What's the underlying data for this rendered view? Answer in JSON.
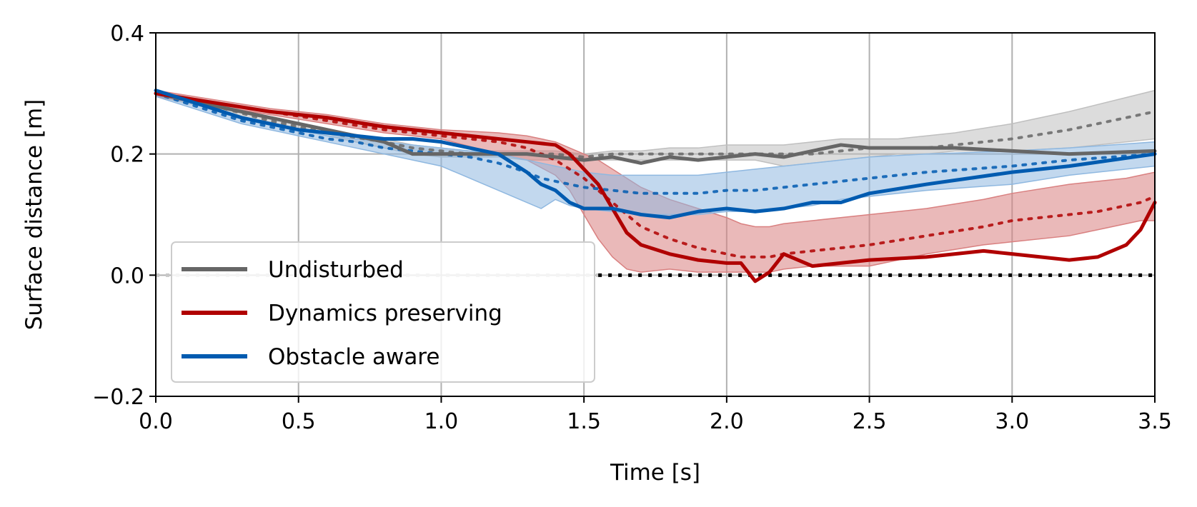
{
  "chart_data": {
    "type": "line",
    "title": "",
    "xlabel": "Time [s]",
    "ylabel": "Surface distance [m]",
    "xlim": [
      0.0,
      3.5
    ],
    "ylim": [
      -0.2,
      0.4
    ],
    "xticks": [
      0.0,
      0.5,
      1.0,
      1.5,
      2.0,
      2.5,
      3.0,
      3.5
    ],
    "xtick_labels": [
      "0.0",
      "0.5",
      "1.0",
      "1.5",
      "2.0",
      "2.5",
      "3.0",
      "3.5"
    ],
    "yticks": [
      -0.2,
      0.0,
      0.2,
      0.4
    ],
    "ytick_labels": [
      "−0.2",
      "0.0",
      "0.2",
      "0.4"
    ],
    "grid": true,
    "legend_position": "lower-left",
    "reference_line": {
      "y": 0.0,
      "style": "dotted",
      "color": "#000000",
      "from_x": 1.55
    },
    "series": [
      {
        "name": "Undisturbed",
        "color": "#666666",
        "band_color": "#bfbfbf",
        "x": [
          0.0,
          0.2,
          0.4,
          0.6,
          0.8,
          0.9,
          1.0,
          1.1,
          1.2,
          1.3,
          1.4,
          1.5,
          1.6,
          1.7,
          1.8,
          1.9,
          2.0,
          2.1,
          2.2,
          2.3,
          2.4,
          2.5,
          2.6,
          2.7,
          2.8,
          3.0,
          3.2,
          3.5
        ],
        "values": [
          0.3,
          0.28,
          0.26,
          0.24,
          0.22,
          0.2,
          0.2,
          0.2,
          0.2,
          0.2,
          0.195,
          0.19,
          0.195,
          0.185,
          0.195,
          0.19,
          0.195,
          0.2,
          0.195,
          0.205,
          0.215,
          0.21,
          0.21,
          0.21,
          0.21,
          0.205,
          0.2,
          0.205
        ],
        "mean": [
          0.3,
          0.28,
          0.255,
          0.235,
          0.22,
          0.21,
          0.205,
          0.2,
          0.2,
          0.2,
          0.2,
          0.195,
          0.2,
          0.2,
          0.2,
          0.2,
          0.2,
          0.2,
          0.2,
          0.2,
          0.205,
          0.21,
          0.21,
          0.21,
          0.215,
          0.225,
          0.24,
          0.27
        ],
        "lower": [
          0.295,
          0.275,
          0.25,
          0.23,
          0.21,
          0.2,
          0.195,
          0.195,
          0.195,
          0.19,
          0.19,
          0.19,
          0.19,
          0.19,
          0.19,
          0.19,
          0.19,
          0.19,
          0.18,
          0.185,
          0.19,
          0.195,
          0.2,
          0.2,
          0.205,
          0.205,
          0.21,
          0.225
        ],
        "upper": [
          0.305,
          0.285,
          0.26,
          0.24,
          0.225,
          0.215,
          0.21,
          0.205,
          0.205,
          0.205,
          0.205,
          0.2,
          0.205,
          0.205,
          0.21,
          0.21,
          0.215,
          0.215,
          0.215,
          0.22,
          0.225,
          0.225,
          0.225,
          0.23,
          0.235,
          0.25,
          0.27,
          0.305
        ]
      },
      {
        "name": "Dynamics preserving",
        "color": "#b00000",
        "band_color": "#d98080",
        "x": [
          0.0,
          0.2,
          0.4,
          0.6,
          0.8,
          1.0,
          1.2,
          1.3,
          1.4,
          1.45,
          1.5,
          1.55,
          1.6,
          1.65,
          1.7,
          1.8,
          1.9,
          2.0,
          2.05,
          2.1,
          2.15,
          2.2,
          2.3,
          2.5,
          2.7,
          2.9,
          3.0,
          3.2,
          3.3,
          3.4,
          3.45,
          3.5
        ],
        "values": [
          0.3,
          0.285,
          0.27,
          0.26,
          0.245,
          0.235,
          0.225,
          0.22,
          0.215,
          0.2,
          0.175,
          0.15,
          0.11,
          0.07,
          0.05,
          0.035,
          0.025,
          0.02,
          0.02,
          -0.01,
          0.005,
          0.035,
          0.015,
          0.025,
          0.03,
          0.04,
          0.035,
          0.025,
          0.03,
          0.05,
          0.075,
          0.12
        ],
        "mean": [
          0.3,
          0.285,
          0.27,
          0.255,
          0.24,
          0.23,
          0.22,
          0.21,
          0.19,
          0.175,
          0.16,
          0.14,
          0.12,
          0.1,
          0.08,
          0.06,
          0.045,
          0.035,
          0.03,
          0.03,
          0.03,
          0.035,
          0.04,
          0.05,
          0.065,
          0.08,
          0.09,
          0.1,
          0.105,
          0.115,
          0.12,
          0.13
        ],
        "lower": [
          0.295,
          0.28,
          0.265,
          0.25,
          0.235,
          0.225,
          0.2,
          0.19,
          0.165,
          0.14,
          0.1,
          0.06,
          0.03,
          0.01,
          0.005,
          0.01,
          0.005,
          0.005,
          0.005,
          0.005,
          0.005,
          0.01,
          0.015,
          0.015,
          0.035,
          0.05,
          0.055,
          0.065,
          0.075,
          0.085,
          0.09,
          0.09
        ],
        "upper": [
          0.305,
          0.29,
          0.275,
          0.265,
          0.25,
          0.24,
          0.235,
          0.23,
          0.22,
          0.21,
          0.2,
          0.19,
          0.175,
          0.16,
          0.145,
          0.125,
          0.11,
          0.095,
          0.085,
          0.08,
          0.08,
          0.085,
          0.09,
          0.1,
          0.11,
          0.125,
          0.135,
          0.15,
          0.155,
          0.16,
          0.165,
          0.17
        ]
      },
      {
        "name": "Obstacle aware",
        "color": "#005bb0",
        "band_color": "#8fb8e0",
        "x": [
          0.0,
          0.1,
          0.2,
          0.3,
          0.4,
          0.5,
          0.6,
          0.7,
          0.8,
          0.9,
          1.0,
          1.1,
          1.2,
          1.3,
          1.35,
          1.4,
          1.45,
          1.5,
          1.6,
          1.7,
          1.8,
          1.9,
          2.0,
          2.1,
          2.2,
          2.3,
          2.4,
          2.5,
          2.7,
          3.0,
          3.2,
          3.5
        ],
        "values": [
          0.305,
          0.29,
          0.275,
          0.26,
          0.25,
          0.24,
          0.235,
          0.23,
          0.225,
          0.225,
          0.22,
          0.21,
          0.2,
          0.17,
          0.15,
          0.14,
          0.12,
          0.11,
          0.11,
          0.1,
          0.095,
          0.105,
          0.11,
          0.105,
          0.11,
          0.12,
          0.12,
          0.135,
          0.15,
          0.17,
          0.18,
          0.2
        ],
        "mean": [
          0.3,
          0.285,
          0.27,
          0.255,
          0.245,
          0.235,
          0.225,
          0.22,
          0.21,
          0.205,
          0.2,
          0.195,
          0.185,
          0.17,
          0.16,
          0.155,
          0.15,
          0.145,
          0.14,
          0.135,
          0.135,
          0.135,
          0.14,
          0.14,
          0.145,
          0.15,
          0.155,
          0.16,
          0.17,
          0.18,
          0.19,
          0.2
        ],
        "lower": [
          0.295,
          0.28,
          0.265,
          0.25,
          0.24,
          0.23,
          0.22,
          0.21,
          0.2,
          0.19,
          0.18,
          0.16,
          0.14,
          0.12,
          0.11,
          0.125,
          0.115,
          0.11,
          0.105,
          0.1,
          0.1,
          0.1,
          0.105,
          0.105,
          0.11,
          0.115,
          0.125,
          0.13,
          0.14,
          0.15,
          0.165,
          0.18
        ],
        "upper": [
          0.305,
          0.29,
          0.275,
          0.26,
          0.25,
          0.24,
          0.23,
          0.225,
          0.22,
          0.215,
          0.21,
          0.205,
          0.2,
          0.19,
          0.185,
          0.18,
          0.175,
          0.17,
          0.165,
          0.165,
          0.165,
          0.165,
          0.17,
          0.175,
          0.18,
          0.185,
          0.19,
          0.195,
          0.2,
          0.205,
          0.21,
          0.22
        ]
      }
    ]
  }
}
